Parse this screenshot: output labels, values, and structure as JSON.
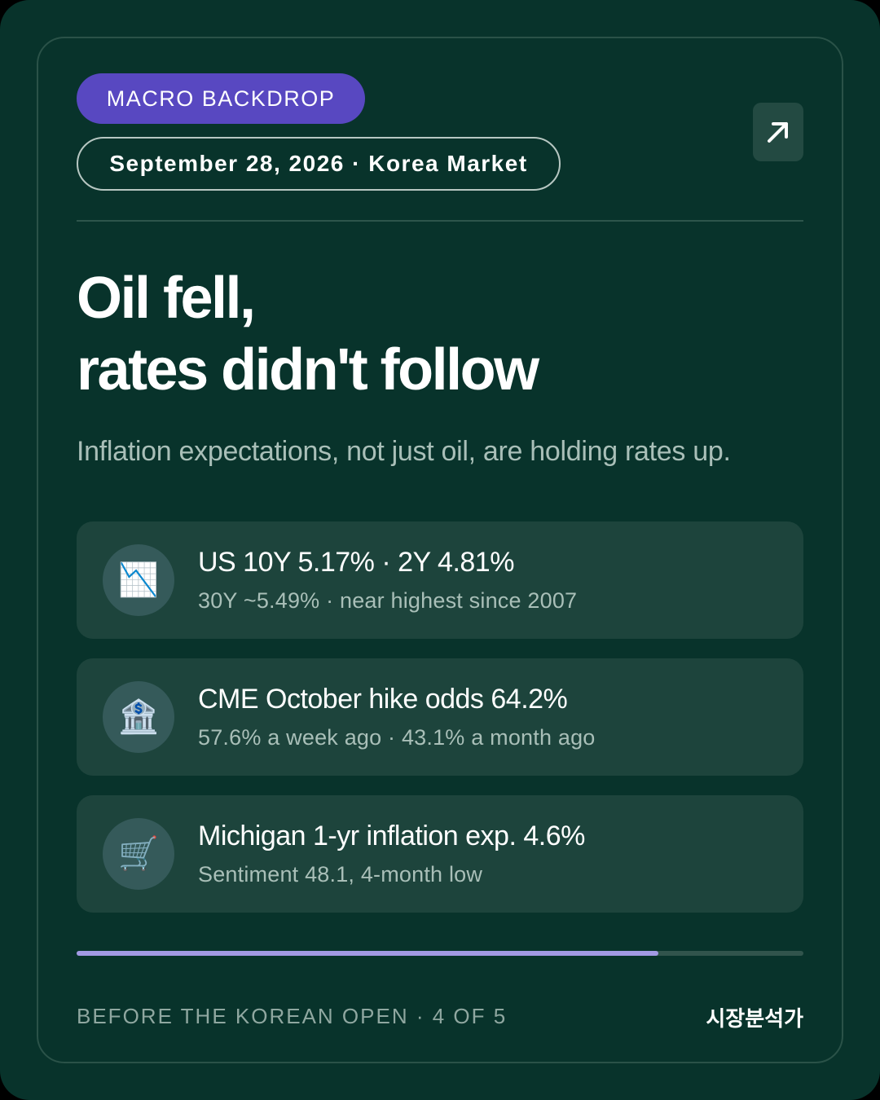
{
  "header": {
    "category_label": "MACRO BACKDROP",
    "date_market_label": "September 28, 2026 · Korea Market",
    "share_icon": "arrow-up-right-icon"
  },
  "headline": {
    "line1": "Oil fell,",
    "line2": "rates didn't follow"
  },
  "subheadline": "Inflation expectations, not just oil, are holding rates up.",
  "stats": [
    {
      "icon": "chart-decreasing-icon",
      "icon_glyph": "📉",
      "title": "US 10Y 5.17% · 2Y 4.81%",
      "detail": "30Y ~5.49% · near highest since 2007"
    },
    {
      "icon": "bank-icon",
      "icon_glyph": "🏦",
      "title": "CME October hike odds 64.2%",
      "detail": "57.6% a week ago · 43.1% a month ago"
    },
    {
      "icon": "shopping-cart-icon",
      "icon_glyph": "🛒",
      "title": "Michigan 1-yr inflation exp. 4.6%",
      "detail": "Sentiment 48.1, 4-month low"
    }
  ],
  "progress": {
    "fraction": 0.8
  },
  "footer": {
    "left_label": "BEFORE THE KOREAN OPEN · 4 OF 5",
    "brand_label": "시장분석가"
  },
  "colors": {
    "background": "#08332b",
    "category_pill": "#5848c1",
    "progress_fill": "#a29ae4",
    "stat_row": "#1d443c"
  }
}
